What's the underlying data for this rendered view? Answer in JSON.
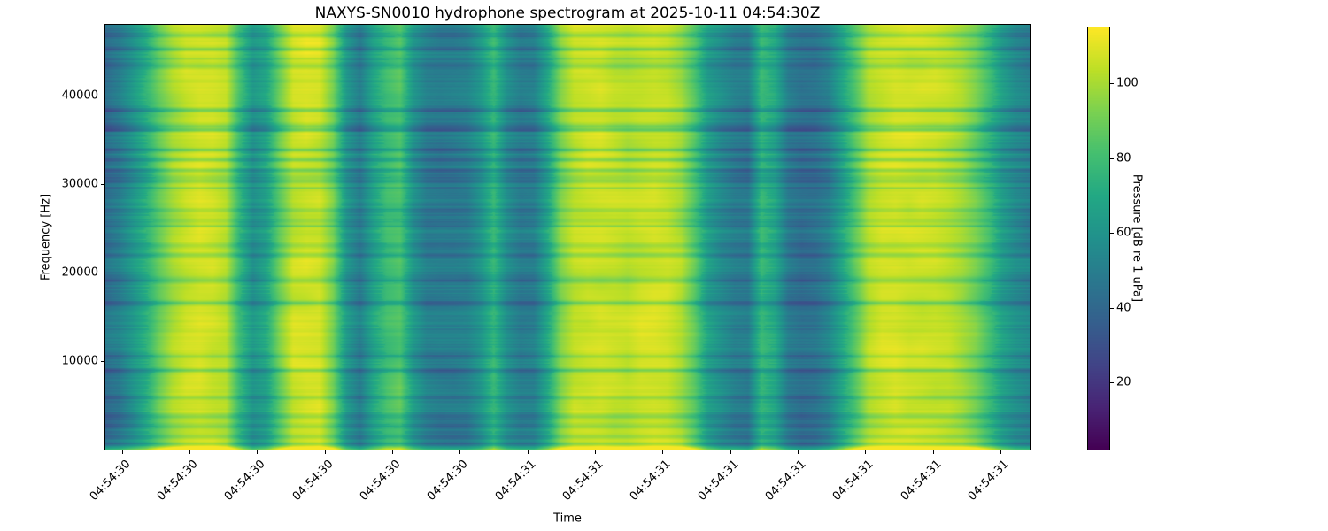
{
  "title": "NAXYS-SN0010 hydrophone spectrogram at 2025-10-11 04:54:30Z",
  "axes": {
    "xlabel": "Time",
    "ylabel": "Frequency [Hz]",
    "y_tick_values": [
      10000,
      20000,
      30000,
      40000
    ],
    "x_ticklabels": [
      "04:54:30",
      "04:54:30",
      "04:54:30",
      "04:54:30",
      "04:54:30",
      "04:54:30",
      "04:54:31",
      "04:54:31",
      "04:54:31",
      "04:54:31",
      "04:54:31",
      "04:54:31",
      "04:54:31",
      "04:54:31"
    ]
  },
  "colorbar": {
    "label": "Pressure [dB re 1 uPa]",
    "tick_values": [
      20,
      40,
      60,
      80,
      100
    ],
    "vmin": 2,
    "vmax": 115
  },
  "chart_data": {
    "type": "heatmap",
    "subtype": "spectrogram",
    "title": "NAXYS-SN0010 hydrophone spectrogram at 2025-10-11 04:54:30Z",
    "xlabel": "Time",
    "ylabel": "Frequency [Hz]",
    "ylim": [
      0,
      48000
    ],
    "x_time_span": [
      "04:54:30",
      "04:54:31"
    ],
    "x_tick_start_frac": 0.018,
    "x_tick_step_frac": 0.0731,
    "grid": false,
    "colormap": "viridis",
    "colormap_stops": [
      [
        0.0,
        "#440154"
      ],
      [
        0.1,
        "#482475"
      ],
      [
        0.2,
        "#414487"
      ],
      [
        0.3,
        "#355f8d"
      ],
      [
        0.4,
        "#2a788e"
      ],
      [
        0.5,
        "#21918c"
      ],
      [
        0.6,
        "#22a884"
      ],
      [
        0.7,
        "#44bf70"
      ],
      [
        0.8,
        "#7ad151"
      ],
      [
        0.9,
        "#bddf26"
      ],
      [
        1.0,
        "#fde725"
      ]
    ],
    "pressure_db_range": [
      2,
      115
    ],
    "n_time_bins": 70,
    "n_freq_bins": 48,
    "time_profile_db": [
      44,
      50,
      60,
      72,
      88,
      100,
      106,
      108,
      107,
      103,
      78,
      60,
      68,
      90,
      106,
      108,
      107,
      92,
      62,
      50,
      68,
      80,
      85,
      62,
      52,
      50,
      50,
      52,
      62,
      78,
      58,
      50,
      52,
      70,
      95,
      105,
      107,
      108,
      106,
      104,
      106,
      107,
      106,
      100,
      86,
      66,
      58,
      52,
      50,
      78,
      70,
      50,
      45,
      46,
      52,
      68,
      85,
      102,
      107,
      109,
      108,
      107,
      106,
      104,
      100,
      92,
      80,
      66,
      58,
      54
    ],
    "texture": {
      "seed": 7,
      "freq_block_noise_db": 9,
      "row_noise_db": 6,
      "dark_region_extra_stripe_db": 8,
      "notch_count": 30,
      "notch_depth_db": [
        6,
        15
      ],
      "bottom_edge_boost_db": 24
    }
  }
}
